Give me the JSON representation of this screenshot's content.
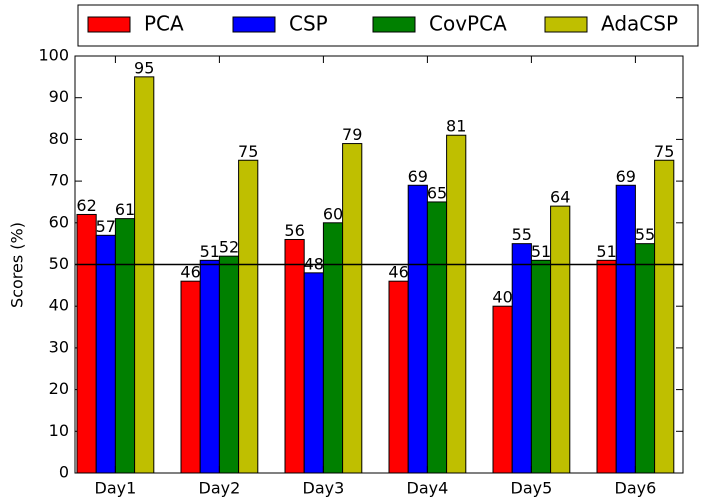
{
  "chart_data": {
    "type": "bar",
    "y_label": "Scores (%)",
    "categories": [
      "Day1",
      "Day2",
      "Day3",
      "Day4",
      "Day5",
      "Day6"
    ],
    "series": [
      {
        "name": "PCA",
        "color": "#ff0000",
        "values": [
          62,
          46,
          56,
          46,
          40,
          51
        ]
      },
      {
        "name": "CSP",
        "color": "#0000ff",
        "values": [
          57,
          51,
          48,
          69,
          55,
          69
        ]
      },
      {
        "name": "CovPCA",
        "color": "#008000",
        "values": [
          61,
          52,
          60,
          65,
          51,
          55
        ]
      },
      {
        "name": "AdaCSP",
        "color": "#bfbf00",
        "values": [
          95,
          75,
          79,
          81,
          64,
          75
        ]
      }
    ],
    "ylim": [
      0,
      100
    ],
    "yticks": [
      0,
      10,
      20,
      30,
      40,
      50,
      60,
      70,
      80,
      90,
      100
    ],
    "reference_line": 50,
    "legend": "top"
  }
}
